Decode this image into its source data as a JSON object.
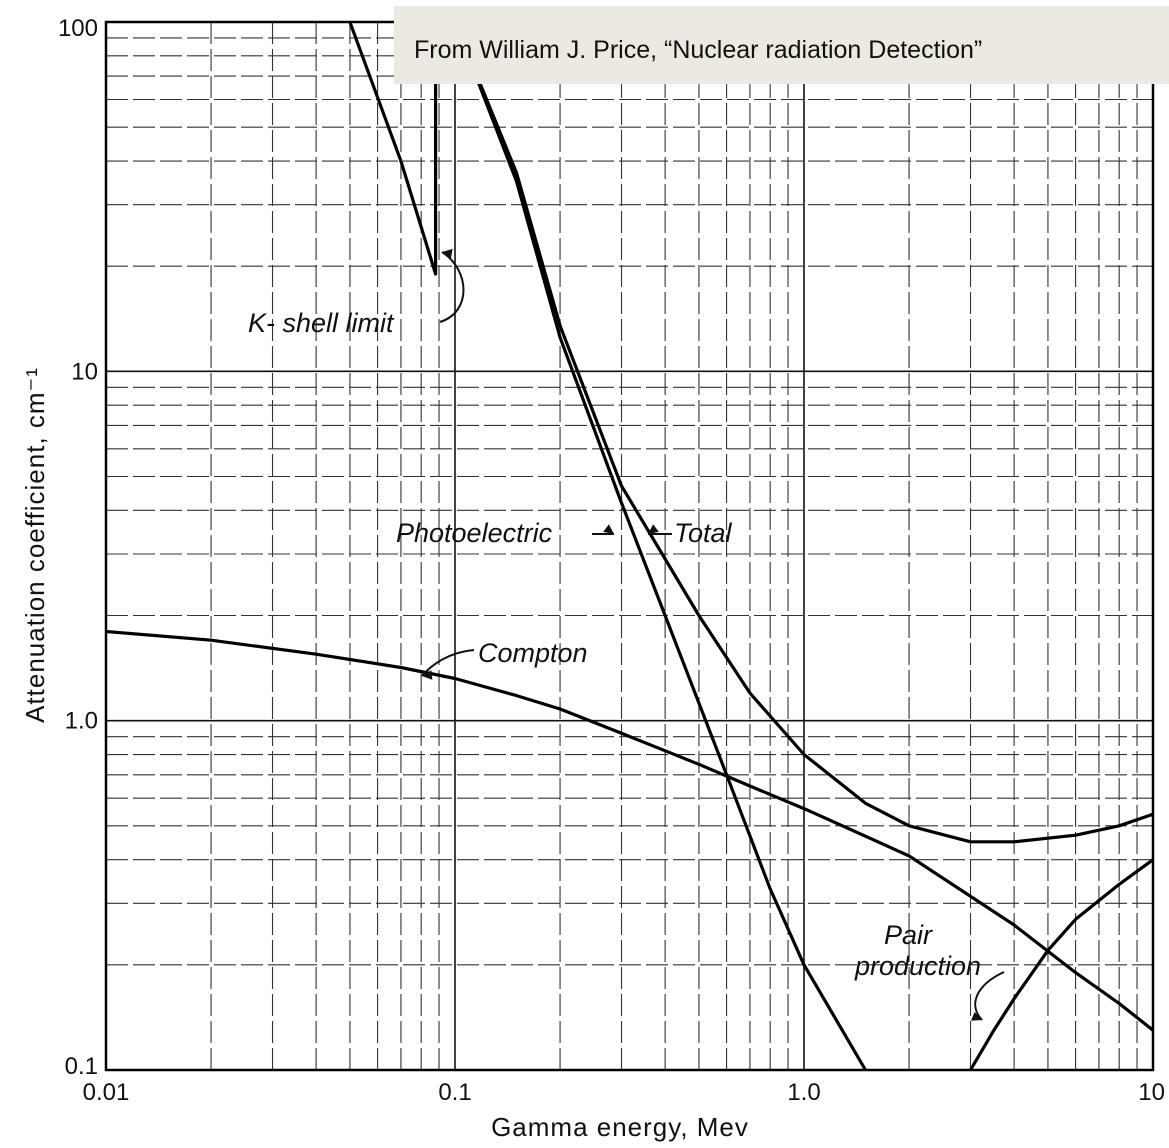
{
  "source_note": "From William J. Price, “Nuclear radiation Detection”",
  "chart_data": {
    "type": "line",
    "title": "",
    "xlabel": "Gamma energy, Mev",
    "ylabel": "Attenuation coefficient, cm⁻¹",
    "xscale": "log",
    "yscale": "log",
    "xlim": [
      0.01,
      10
    ],
    "ylim": [
      0.1,
      100
    ],
    "grid": true,
    "x_ticks": [
      {
        "value": 0.01,
        "label": "0.01"
      },
      {
        "value": 0.1,
        "label": "0.1"
      },
      {
        "value": 1.0,
        "label": "1.0"
      },
      {
        "value": 10,
        "label": "10"
      }
    ],
    "y_ticks": [
      {
        "value": 0.1,
        "label": "0.1"
      },
      {
        "value": 1.0,
        "label": "1.0"
      },
      {
        "value": 10,
        "label": "10"
      },
      {
        "value": 100,
        "label": "100"
      }
    ],
    "series": [
      {
        "name": "Photoelectric",
        "points": [
          [
            0.05,
            100
          ],
          [
            0.07,
            40
          ],
          [
            0.088,
            19
          ],
          [
            0.088,
            100
          ],
          [
            0.1,
            100
          ],
          [
            0.15,
            35
          ],
          [
            0.2,
            12.5
          ],
          [
            0.3,
            4.2
          ],
          [
            0.4,
            2.0
          ],
          [
            0.6,
            0.7
          ],
          [
            0.8,
            0.33
          ],
          [
            1.0,
            0.2
          ],
          [
            1.5,
            0.1
          ]
        ]
      },
      {
        "name": "Total",
        "points": [
          [
            0.1,
            100
          ],
          [
            0.15,
            37
          ],
          [
            0.2,
            13.5
          ],
          [
            0.3,
            4.7
          ],
          [
            0.5,
            2.0
          ],
          [
            0.7,
            1.2
          ],
          [
            1.0,
            0.8
          ],
          [
            1.5,
            0.58
          ],
          [
            2.0,
            0.5
          ],
          [
            3.0,
            0.45
          ],
          [
            4.0,
            0.45
          ],
          [
            6.0,
            0.47
          ],
          [
            8.0,
            0.5
          ],
          [
            10,
            0.54
          ]
        ]
      },
      {
        "name": "Compton",
        "points": [
          [
            0.01,
            1.8
          ],
          [
            0.02,
            1.7
          ],
          [
            0.04,
            1.55
          ],
          [
            0.07,
            1.42
          ],
          [
            0.1,
            1.32
          ],
          [
            0.15,
            1.18
          ],
          [
            0.2,
            1.08
          ],
          [
            0.3,
            0.92
          ],
          [
            0.5,
            0.75
          ],
          [
            0.7,
            0.65
          ],
          [
            1.0,
            0.56
          ],
          [
            2.0,
            0.41
          ],
          [
            4.0,
            0.26
          ],
          [
            6.0,
            0.19
          ],
          [
            8.0,
            0.155
          ],
          [
            10,
            0.13
          ]
        ]
      },
      {
        "name": "Pair production",
        "points": [
          [
            3.0,
            0.1
          ],
          [
            3.5,
            0.13
          ],
          [
            4.0,
            0.16
          ],
          [
            5.0,
            0.22
          ],
          [
            6.0,
            0.27
          ],
          [
            8.0,
            0.34
          ],
          [
            10,
            0.4
          ]
        ]
      }
    ],
    "annotations": [
      {
        "text": "K- shell limit",
        "x": 0.088,
        "y": 20
      },
      {
        "text": "Photoelectric",
        "x": 0.3,
        "y": 3.5
      },
      {
        "text": "Total",
        "x": 0.38,
        "y": 3.2
      },
      {
        "text": "Compton",
        "x": 0.085,
        "y": 1.4
      },
      {
        "text": "Pair",
        "x": 5.2,
        "y": 0.2
      },
      {
        "text": "production",
        "x": 5.2,
        "y": 0.2
      }
    ]
  }
}
